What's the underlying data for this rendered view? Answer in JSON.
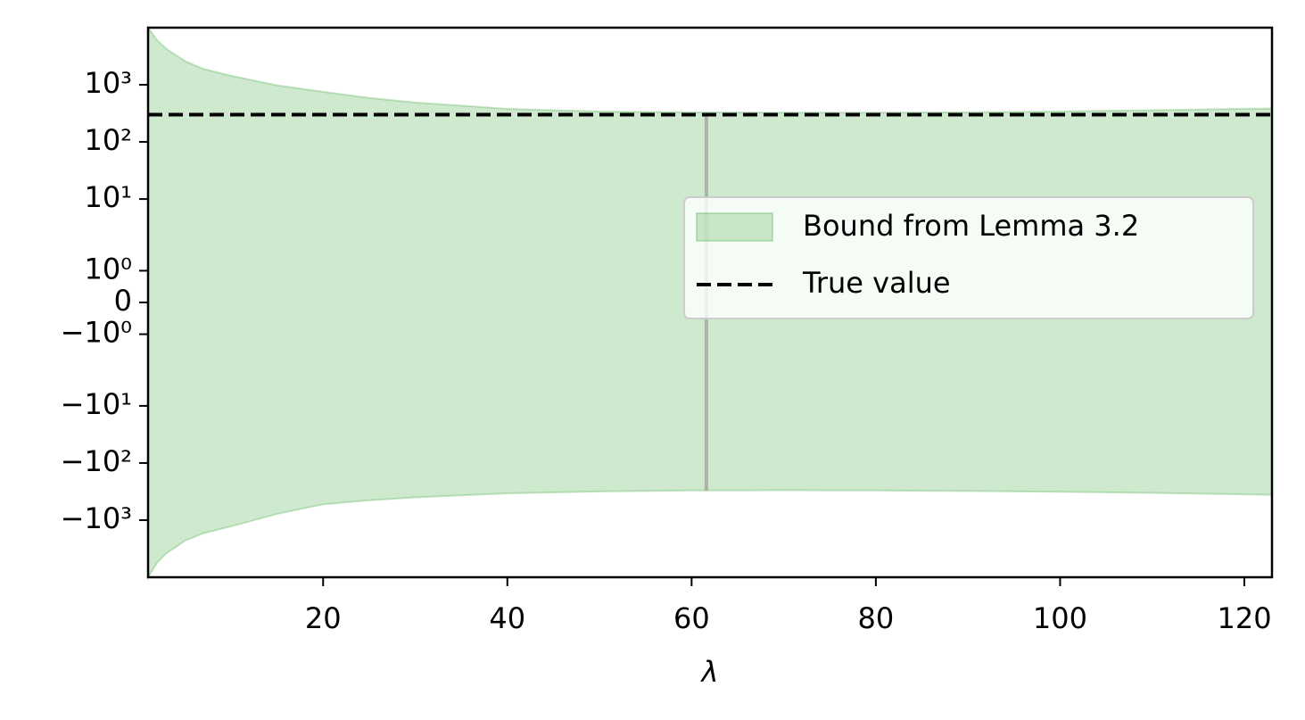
{
  "chart_data": {
    "type": "fill_between",
    "xlabel": "λ",
    "xlim": [
      1,
      123
    ],
    "ylim": [
      -10000,
      10000
    ],
    "yscale": "symlog",
    "xticks": [
      20,
      40,
      60,
      80,
      100,
      120
    ],
    "yticks": [
      {
        "value": 1000,
        "label": "10³"
      },
      {
        "value": 100,
        "label": "10²"
      },
      {
        "value": 10,
        "label": "10¹"
      },
      {
        "value": 1,
        "label": "10⁰"
      },
      0,
      {
        "value": -1,
        "label": "−10⁰"
      },
      {
        "value": -10,
        "label": "−10¹"
      },
      {
        "value": -100,
        "label": "−10²"
      },
      {
        "value": -1000,
        "label": "−10³"
      }
    ],
    "legend": "center right",
    "series": [
      {
        "name": "Bound from Lemma 3.2",
        "color": "#2ca02c",
        "x": [
          1,
          2,
          3,
          5,
          7,
          10,
          15,
          20,
          25,
          30,
          40,
          50,
          60,
          70,
          80,
          90,
          100,
          110,
          120,
          123
        ],
        "upper": [
          10000,
          6000,
          4240,
          2600,
          1900,
          1440,
          980,
          754,
          590,
          490,
          380,
          340,
          330,
          325,
          325,
          330,
          340,
          360,
          381,
          385
        ],
        "lower": [
          -10000,
          -5500,
          -3810,
          -2300,
          -1700,
          -1290,
          -780,
          -530,
          -450,
          -400,
          -340,
          -315,
          -303,
          -300,
          -303,
          -310,
          -320,
          -335,
          -355,
          -360
        ]
      }
    ],
    "hline": {
      "name": "True value",
      "color": "#000000",
      "y": 300,
      "style": "dashed"
    },
    "vline": {
      "x": 61.6,
      "ymin": -303,
      "ymax": 300,
      "color": "#808080"
    }
  }
}
